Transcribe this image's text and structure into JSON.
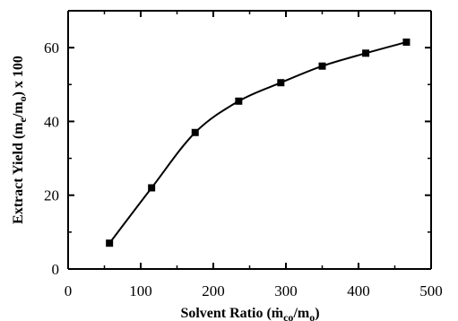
{
  "chart_data": {
    "type": "line",
    "title": "",
    "xlabel_main": "Solvent Ratio (",
    "xlabel_symbol": "ṁ",
    "xlabel_symbol_sub": "co",
    "xlabel_rest": "/m",
    "xlabel_rest_sub": "o",
    "xlabel_end": ")",
    "ylabel_main": "Extract Yield (m",
    "ylabel_sub1": "e",
    "ylabel_mid": "/m",
    "ylabel_sub2": "o",
    "ylabel_end": ") x 100",
    "xlim": [
      0,
      500
    ],
    "ylim": [
      0,
      70
    ],
    "xticks": [
      "0",
      "100",
      "200",
      "300",
      "400",
      "500"
    ],
    "yticks": [
      "0",
      "20",
      "40",
      "60"
    ],
    "grid": false,
    "series": [
      {
        "marker": "square",
        "color": "#000000",
        "x": [
          57,
          115,
          175,
          235,
          293,
          350,
          410,
          466
        ],
        "y": [
          7,
          22,
          37,
          45.5,
          50.5,
          55,
          58.5,
          61.5
        ]
      }
    ]
  }
}
